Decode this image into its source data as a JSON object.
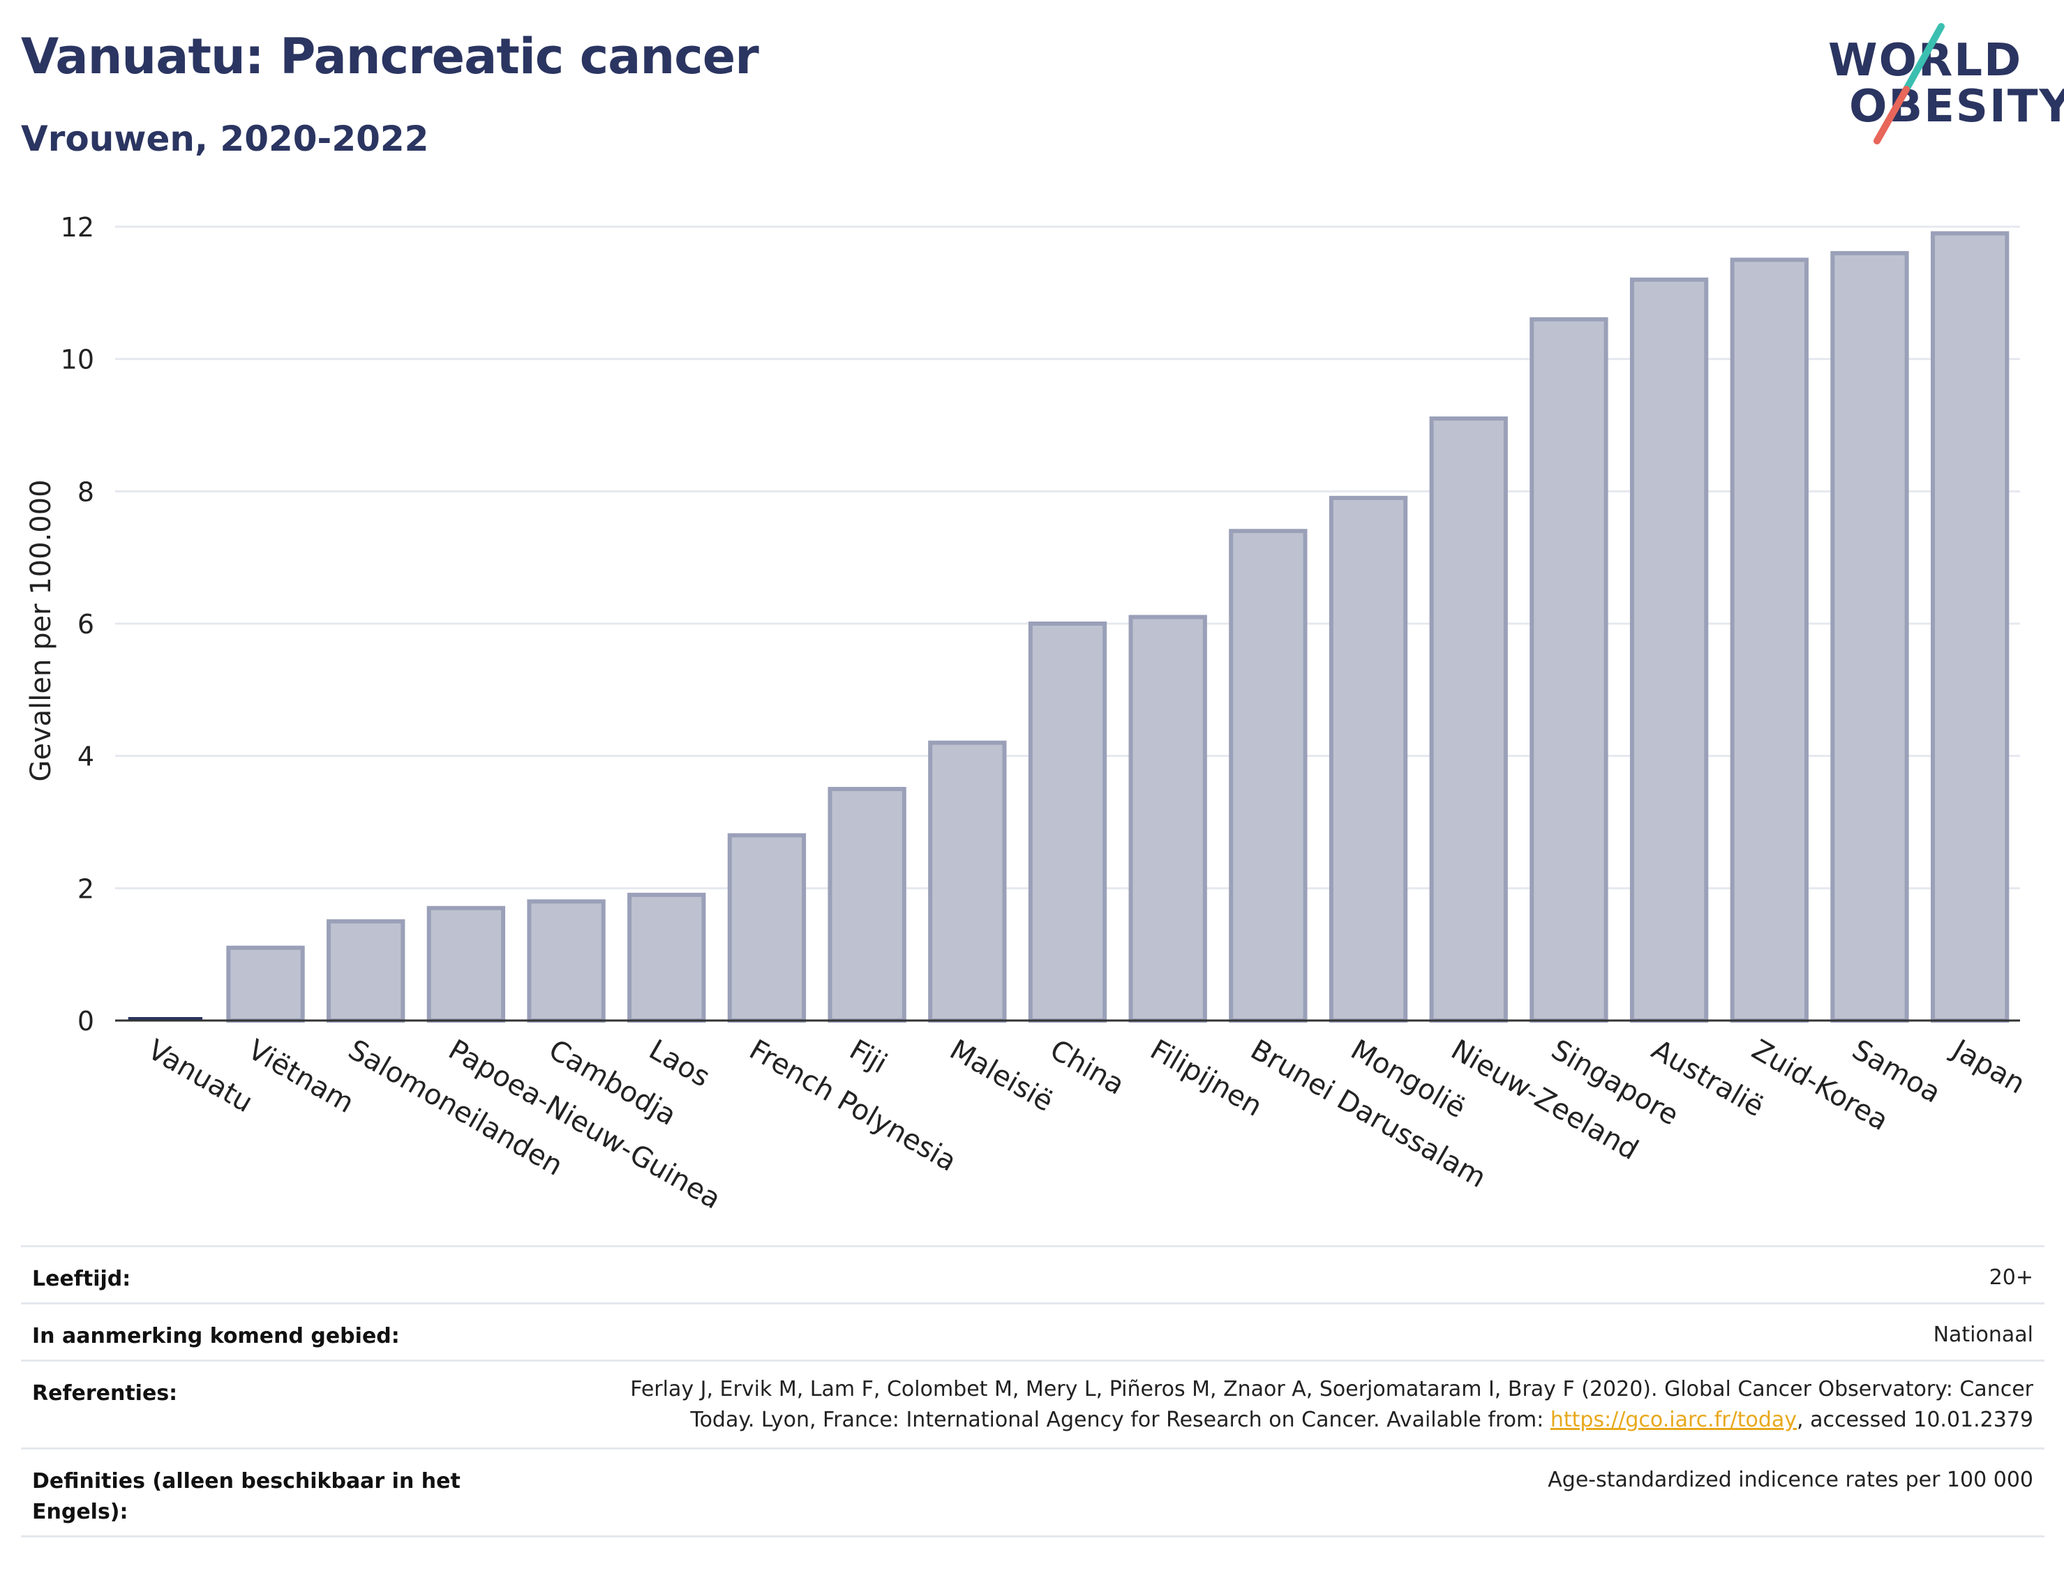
{
  "header": {
    "title": "Vanuatu: Pancreatic cancer",
    "subtitle": "Vrouwen, 2020-2022"
  },
  "logo": {
    "line1": "WORLD",
    "line2": "OBESITY",
    "colors": {
      "text": "#2b3561",
      "slash_top": "#3bbfb0",
      "slash_bottom": "#e8665a"
    }
  },
  "chart_data": {
    "type": "bar",
    "title": "Vanuatu: Pancreatic cancer",
    "subtitle": "Vrouwen, 2020-2022",
    "xlabel": "",
    "ylabel": "Gevallen per 100.000",
    "ylim": [
      0,
      12.5
    ],
    "yticks": [
      0,
      2,
      4,
      6,
      8,
      10,
      12
    ],
    "grid": true,
    "highlight": "Vanuatu",
    "colors": {
      "bar_fill": "#bec2d0",
      "bar_stroke": "#9aa0b8",
      "highlight": "#2b3561",
      "grid": "#e6e8ef",
      "axis": "#333333"
    },
    "categories": [
      "Vanuatu",
      "Viëtnam",
      "Salomoneilanden",
      "Papoea-Nieuw-Guinea",
      "Cambodja",
      "Laos",
      "French Polynesia",
      "Fiji",
      "Maleisië",
      "China",
      "Filipijnen",
      "Brunei Darussalam",
      "Mongolië",
      "Nieuw-Zeeland",
      "Singapore",
      "Australië",
      "Zuid-Korea",
      "Samoa",
      "Japan"
    ],
    "values": [
      0.0,
      1.1,
      1.5,
      1.7,
      1.8,
      1.9,
      2.8,
      3.5,
      4.2,
      6.0,
      6.1,
      7.4,
      7.9,
      9.1,
      10.6,
      11.2,
      11.5,
      11.6,
      11.9
    ]
  },
  "meta": {
    "rows": [
      {
        "label": "Leeftijd:",
        "value": "20+"
      },
      {
        "label": "In aanmerking komend gebied:",
        "value": "Nationaal"
      },
      {
        "label": "Referenties:",
        "value_line1": "Ferlay J, Ervik M, Lam F, Colombet M, Mery L, Piñeros M, Znaor A, Soerjomataram I, Bray F (2020). Global Cancer Observatory: Cancer",
        "value_line2_pre": "Today. Lyon, France: International Agency for Research on Cancer. Available from: ",
        "value_link": "https://gco.iarc.fr/today",
        "value_line2_post": ", accessed 10.01.2379"
      },
      {
        "label_line1": "Definities (alleen beschikbaar in het",
        "label_line2": "Engels):",
        "value": "Age-standardized indicence rates per 100 000"
      }
    ]
  }
}
